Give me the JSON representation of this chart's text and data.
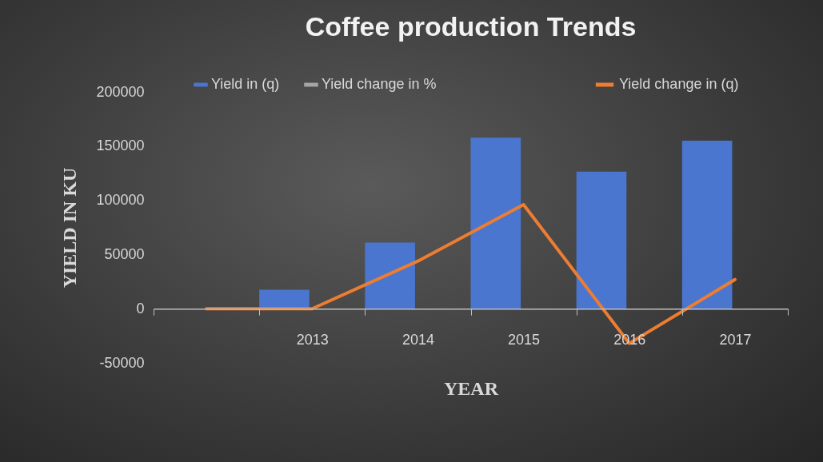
{
  "chart_data": {
    "type": "bar",
    "title": "Coffee production Trends",
    "xlabel": "YEAR",
    "ylabel": "YIELD IN KU",
    "categories": [
      null,
      "2013",
      "2014",
      "2015",
      "2016",
      "2017"
    ],
    "series": [
      {
        "name": "Yield in (q)",
        "color": "#4a76cf",
        "values": [
          null,
          17400,
          60900,
          157700,
          126500,
          155000
        ]
      },
      {
        "name": "Yield change in %",
        "color": "#a5a5a5",
        "values": [
          null,
          null,
          null,
          null,
          null,
          null
        ]
      },
      {
        "name": "Yield change in (q)",
        "type": "line",
        "color": "#ed7d31",
        "values": [
          0,
          0,
          43900,
          96000,
          -32000,
          26900
        ]
      }
    ],
    "ylim": [
      -50000,
      200000
    ],
    "yticks": [
      -50000,
      0,
      50000,
      100000,
      150000,
      200000
    ],
    "grid": false,
    "legend": "top"
  }
}
